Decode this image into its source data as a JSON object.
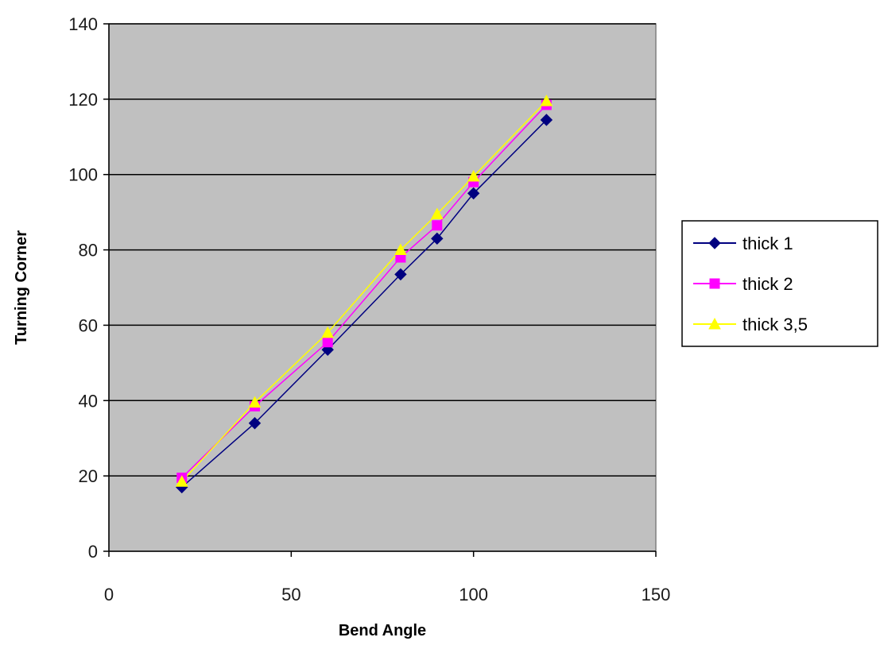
{
  "chart_data": {
    "type": "line",
    "title": "",
    "xlabel": "Bend Angle",
    "ylabel": "Turning Corner",
    "xlim": [
      0,
      150
    ],
    "ylim": [
      0,
      140
    ],
    "x_ticks": [
      0,
      50,
      100,
      150
    ],
    "y_ticks": [
      0,
      20,
      40,
      60,
      80,
      100,
      120,
      140
    ],
    "grid": "horizontal",
    "legend_position": "right",
    "plot_background": "#c0c0c0",
    "series": [
      {
        "name": "thick 1",
        "color": "#000080",
        "marker": "diamond",
        "x": [
          20,
          40,
          60,
          80,
          90,
          100,
          120
        ],
        "y": [
          17,
          34,
          53.5,
          73.5,
          83,
          95,
          114.5
        ]
      },
      {
        "name": "thick 2",
        "color": "#ff00ff",
        "marker": "square",
        "x": [
          20,
          40,
          60,
          80,
          90,
          100,
          120
        ],
        "y": [
          19.5,
          38.5,
          55.5,
          78,
          86.5,
          98,
          118.5
        ]
      },
      {
        "name": "thick 3,5",
        "color": "#ffff00",
        "marker": "triangle",
        "x": [
          20,
          40,
          60,
          80,
          90,
          100,
          120
        ],
        "y": [
          18.5,
          39.5,
          58,
          80,
          89.5,
          99.5,
          119.5
        ]
      }
    ]
  }
}
